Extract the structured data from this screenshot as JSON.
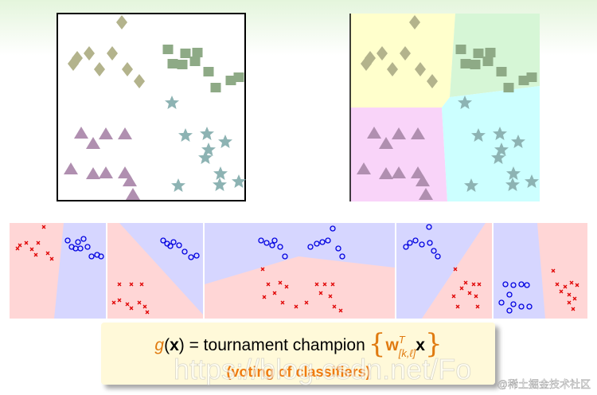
{
  "formula": {
    "function": "g",
    "open_paren": "(",
    "variable": "x",
    "rest": ") = tournament champion",
    "open_brace": "{",
    "weight": "w",
    "superscript": "T",
    "subscript": "[k,ℓ]",
    "input": "x",
    "close_brace": "}"
  },
  "caption": "(voting of classifiers)",
  "watermarks": [
    "https://blog.csdn.net/Fo",
    "@稀土掘金技术社区"
  ]
}
